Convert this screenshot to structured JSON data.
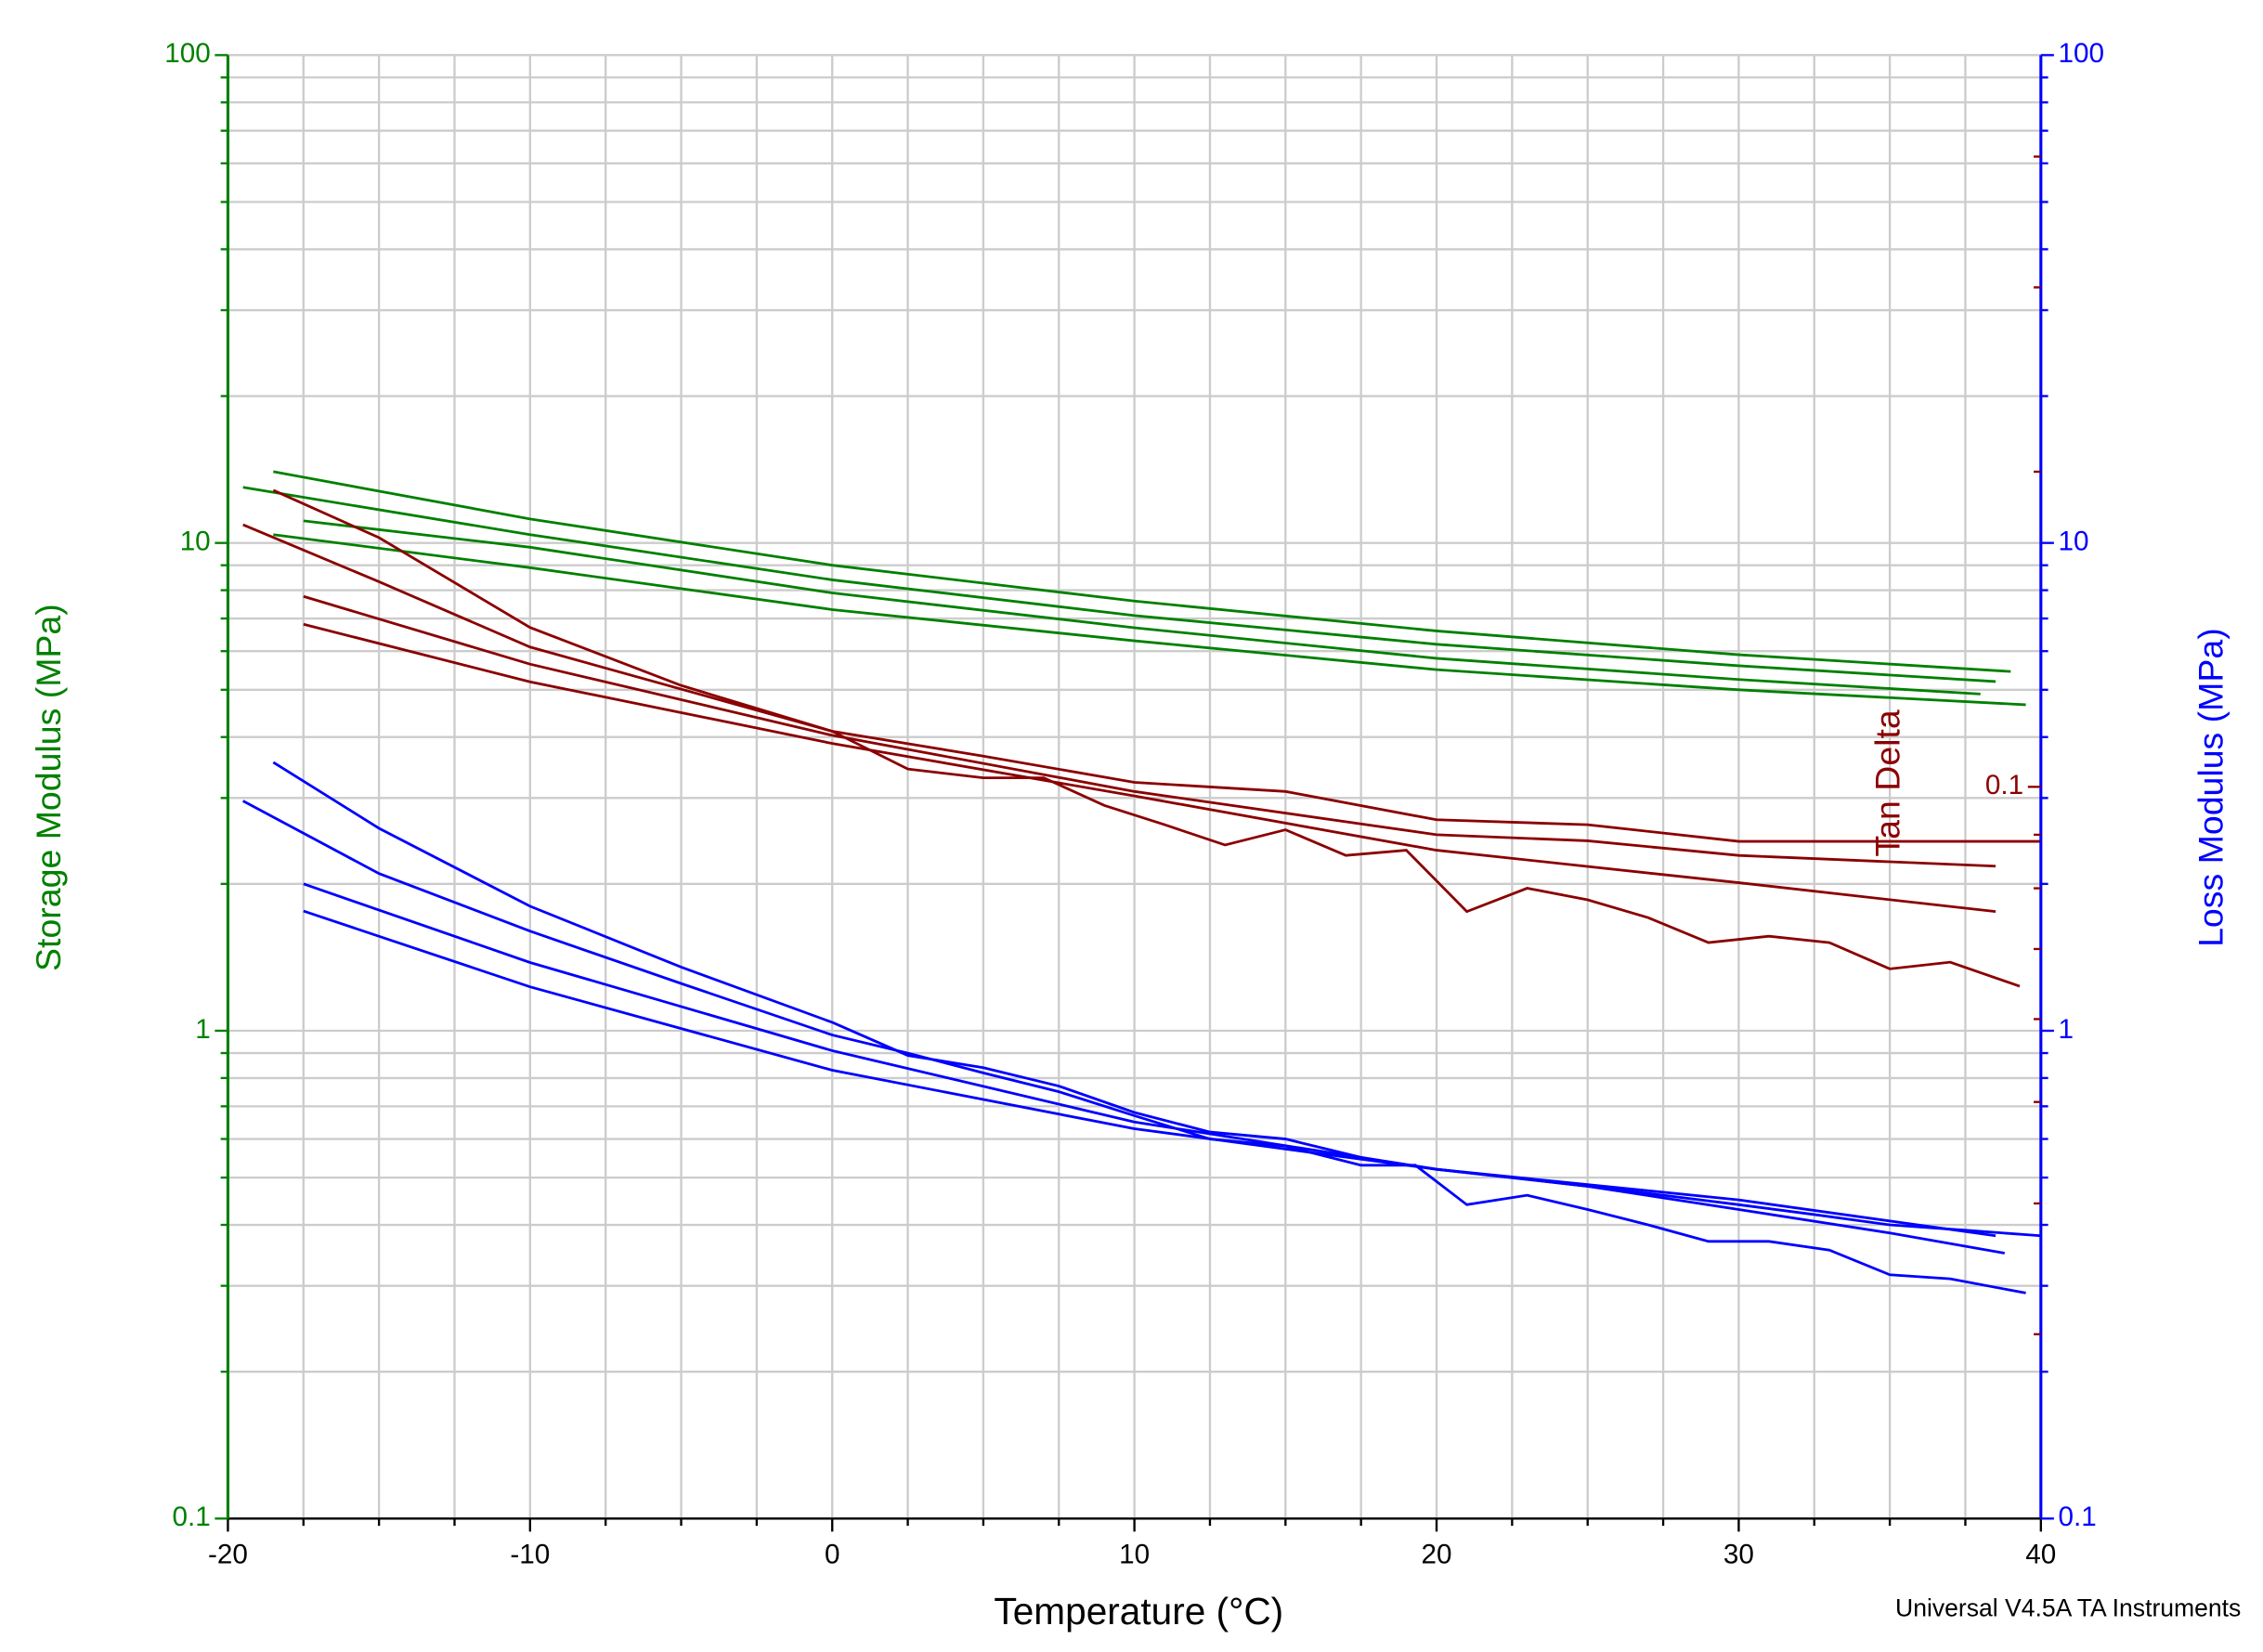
{
  "chart_data": {
    "type": "line",
    "x_label": "Temperature (°C)",
    "y_label": "Storage Modulus (MPa)",
    "y2_label": "Loss Modulus (MPa)",
    "y3_label": "Tan Delta",
    "footer": "Universal V4.5A TA Instruments",
    "xlim": [
      -20,
      40
    ],
    "xticks": [
      -20,
      -10,
      0,
      10,
      20,
      30,
      40
    ],
    "xminorticks": [
      -17.5,
      -15,
      -12.5,
      -7.5,
      -5,
      -2.5,
      2.5,
      5,
      7.5,
      12.5,
      15,
      17.5,
      22.5,
      25,
      27.5,
      32.5,
      35,
      37.5
    ],
    "ylim": [
      0.1,
      100
    ],
    "yticks": [
      0.1,
      1,
      10,
      100
    ],
    "ylog": true,
    "y2lim": [
      0.1,
      100
    ],
    "y2ticks": [
      0.1,
      1,
      10,
      100
    ],
    "y2log": true,
    "yminorticks": [
      0.2,
      0.3,
      0.4,
      0.5,
      0.6,
      0.7,
      0.8,
      0.9,
      2,
      3,
      4,
      5,
      6,
      7,
      8,
      9,
      20,
      30,
      40,
      50,
      60,
      70,
      80,
      90
    ],
    "y3lim": [
      0.02,
      0.5
    ],
    "y3ticks": [
      0.1
    ],
    "y3log": true,
    "y3minorticks": [
      0.03,
      0.04,
      0.05,
      0.06,
      0.07,
      0.08,
      0.09,
      0.2,
      0.3,
      0.4
    ],
    "axis_colors": {
      "y": "#008000",
      "y2": "#0000ff",
      "y3": "#8b0000"
    },
    "grid": true,
    "series": [
      {
        "axis": "y",
        "color": "#008000",
        "x": [
          -18.5,
          -10,
          0,
          10,
          20,
          30,
          39
        ],
        "values": [
          14.0,
          11.2,
          9.0,
          7.6,
          6.6,
          5.9,
          5.45
        ]
      },
      {
        "axis": "y",
        "color": "#008000",
        "x": [
          -19.5,
          -10,
          0,
          10,
          20,
          30,
          38.5
        ],
        "values": [
          13.0,
          10.4,
          8.4,
          7.1,
          6.2,
          5.6,
          5.2
        ]
      },
      {
        "axis": "y",
        "color": "#008000",
        "x": [
          -17.5,
          -10,
          0,
          10,
          20,
          30,
          38
        ],
        "values": [
          11.1,
          9.8,
          7.9,
          6.7,
          5.8,
          5.25,
          4.9
        ]
      },
      {
        "axis": "y",
        "color": "#008000",
        "x": [
          -18.5,
          -10,
          0,
          10,
          20,
          30,
          39.5
        ],
        "values": [
          10.4,
          8.9,
          7.3,
          6.3,
          5.5,
          5.0,
          4.66
        ]
      },
      {
        "axis": "y2",
        "color": "#0000ff",
        "x": [
          -18.5,
          -15,
          -10,
          -5,
          0,
          2.5,
          5,
          7.5,
          10,
          12.5,
          15,
          17.5,
          20,
          22.5,
          25,
          27.5,
          30,
          32.5,
          35,
          37.5,
          40
        ],
        "values": [
          3.55,
          2.6,
          1.8,
          1.35,
          1.04,
          0.89,
          0.84,
          0.77,
          0.68,
          0.62,
          0.6,
          0.55,
          0.52,
          0.5,
          0.48,
          0.46,
          0.44,
          0.42,
          0.4,
          0.39,
          0.38
        ]
      },
      {
        "axis": "y2",
        "color": "#0000ff",
        "x": [
          -19.5,
          -15,
          -10,
          -5,
          0,
          2.5,
          5,
          7.5,
          10,
          12.5,
          15,
          17.5,
          19.3,
          21,
          23,
          25,
          27,
          29,
          31,
          33,
          35,
          37,
          39.5
        ],
        "values": [
          2.96,
          2.1,
          1.6,
          1.25,
          0.98,
          0.9,
          0.82,
          0.75,
          0.67,
          0.6,
          0.58,
          0.53,
          0.53,
          0.44,
          0.46,
          0.43,
          0.4,
          0.37,
          0.37,
          0.355,
          0.316,
          0.31,
          0.29
        ]
      },
      {
        "axis": "y2",
        "color": "#0000ff",
        "x": [
          -17.5,
          -10,
          0,
          10,
          20,
          25,
          30,
          35,
          38.8
        ],
        "values": [
          2.0,
          1.38,
          0.91,
          0.65,
          0.52,
          0.48,
          0.43,
          0.385,
          0.35
        ]
      },
      {
        "axis": "y2",
        "color": "#0000ff",
        "x": [
          -17.5,
          -10,
          0,
          10,
          20,
          30,
          38.5
        ],
        "values": [
          1.76,
          1.23,
          0.83,
          0.63,
          0.52,
          0.45,
          0.38
        ]
      },
      {
        "axis": "y3",
        "color": "#8b0000",
        "x": [
          -18.5,
          -15,
          -10,
          -5,
          0,
          2.5,
          5,
          7,
          9,
          11,
          13,
          15,
          17,
          19,
          21,
          23,
          25,
          27,
          29,
          31,
          33,
          35,
          37,
          39.3
        ],
        "values": [
          0.192,
          0.173,
          0.142,
          0.125,
          0.113,
          0.104,
          0.102,
          0.102,
          0.096,
          0.092,
          0.088,
          0.091,
          0.086,
          0.087,
          0.076,
          0.08,
          0.078,
          0.075,
          0.071,
          0.072,
          0.071,
          0.067,
          0.068,
          0.0645
        ]
      },
      {
        "axis": "y3",
        "color": "#8b0000",
        "x": [
          -19.5,
          -15,
          -10,
          0,
          5,
          10,
          15,
          20,
          25,
          30,
          34.5,
          40
        ],
        "values": [
          0.178,
          0.157,
          0.136,
          0.113,
          0.107,
          0.101,
          0.099,
          0.093,
          0.092,
          0.0887,
          0.0887,
          0.0887
        ]
      },
      {
        "axis": "y3",
        "color": "#8b0000",
        "x": [
          -17.5,
          -10,
          0,
          10,
          20,
          25,
          30,
          38.5
        ],
        "values": [
          0.152,
          0.131,
          0.112,
          0.099,
          0.09,
          0.0888,
          0.086,
          0.084
        ]
      },
      {
        "axis": "y3",
        "color": "#8b0000",
        "x": [
          -17.5,
          -10,
          0,
          10,
          20,
          30,
          38.5
        ],
        "values": [
          0.143,
          0.126,
          0.11,
          0.098,
          0.087,
          0.081,
          0.076
        ]
      }
    ]
  }
}
